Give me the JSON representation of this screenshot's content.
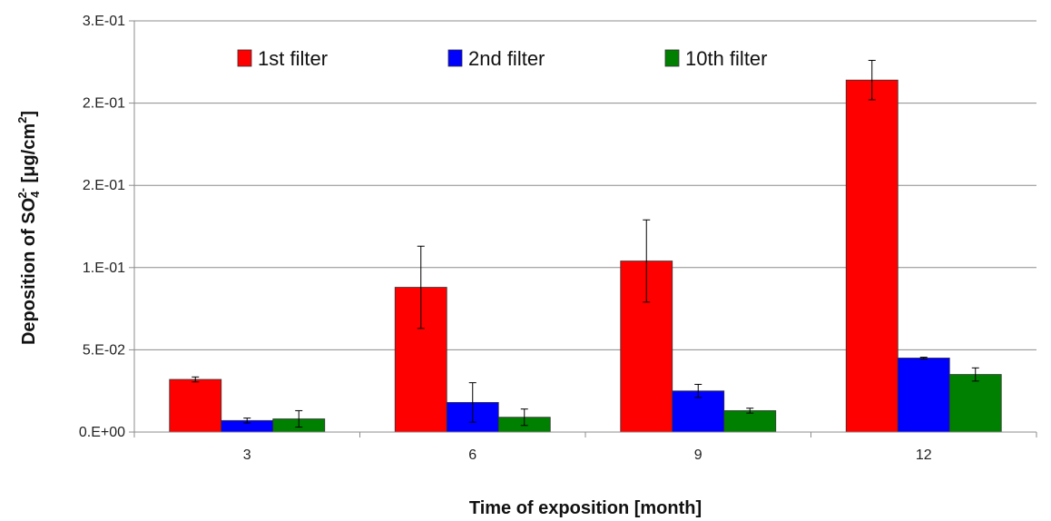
{
  "chart_data": {
    "type": "bar",
    "categories": [
      "3",
      "6",
      "9",
      "12"
    ],
    "series": [
      {
        "name": "1st filter",
        "color": "#ff0000",
        "values": [
          0.032,
          0.088,
          0.104,
          0.214
        ],
        "errors": [
          0.0015,
          0.025,
          0.025,
          0.012
        ]
      },
      {
        "name": "2nd filter",
        "color": "#0000ff",
        "values": [
          0.007,
          0.018,
          0.025,
          0.045
        ],
        "errors": [
          0.0015,
          0.012,
          0.004,
          0.0005
        ]
      },
      {
        "name": "10th filter",
        "color": "#008000",
        "values": [
          0.008,
          0.009,
          0.013,
          0.035
        ],
        "errors": [
          0.005,
          0.005,
          0.0015,
          0.004
        ]
      }
    ],
    "ylim": [
      0,
      0.25
    ],
    "yticks": [
      0,
      0.05,
      0.1,
      0.15,
      0.2,
      0.25
    ],
    "ytick_labels": [
      "0.E+00",
      "5.E-02",
      "1.E-01",
      "2.E-01",
      "2.E-01",
      "3.E-01"
    ],
    "xlabel": "Time of exposition [month]",
    "ylabel": {
      "prefix": "Deposition of SO",
      "sub": "4",
      "sup": "2-",
      "mid": " [μg/cm",
      "sup2": "2",
      "suffix": "]"
    },
    "grid": true,
    "legend_position": "top"
  }
}
